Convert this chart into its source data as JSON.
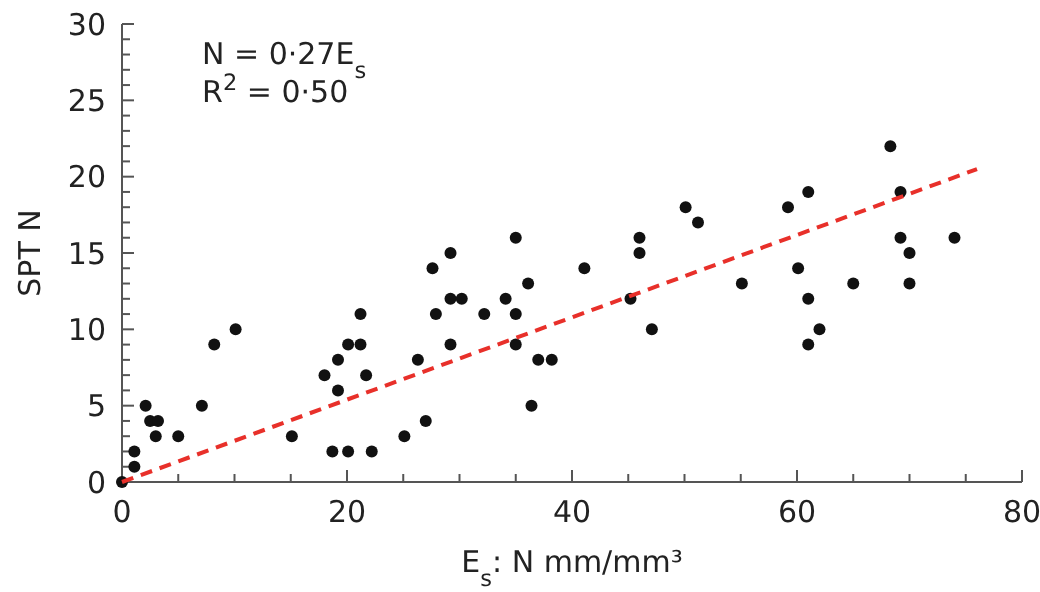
{
  "chart_data": {
    "type": "scatter",
    "xlabel": "E$_{s}$: N mm/mm³",
    "ylabel": "SPT N",
    "annotations": [
      "N = 0·27E$_{s}$",
      "R$^{2}$ = 0·50"
    ],
    "xlim": [
      0,
      80
    ],
    "ylim": [
      0,
      30
    ],
    "xticks": [
      0,
      {
        "value": 5,
        "label": null
      },
      {
        "value": 10,
        "label": null
      },
      {
        "value": 15,
        "label": null
      },
      20,
      {
        "value": 25,
        "label": null
      },
      {
        "value": 30,
        "label": null
      },
      {
        "value": 35,
        "label": null
      },
      40,
      {
        "value": 45,
        "label": null
      },
      {
        "value": 50,
        "label": null
      },
      {
        "value": 55,
        "label": null
      },
      60,
      {
        "value": 65,
        "label": null
      },
      {
        "value": 70,
        "label": null
      },
      {
        "value": 75,
        "label": null
      },
      80
    ],
    "yticks": [
      0,
      {
        "value": 1,
        "label": null
      },
      {
        "value": 2,
        "label": null
      },
      {
        "value": 3,
        "label": null
      },
      {
        "value": 4,
        "label": null
      },
      5,
      {
        "value": 6,
        "label": null
      },
      {
        "value": 7,
        "label": null
      },
      {
        "value": 8,
        "label": null
      },
      {
        "value": 9,
        "label": null
      },
      10,
      {
        "value": 11,
        "label": null
      },
      {
        "value": 12,
        "label": null
      },
      {
        "value": 13,
        "label": null
      },
      {
        "value": 14,
        "label": null
      },
      15,
      {
        "value": 16,
        "label": null
      },
      {
        "value": 17,
        "label": null
      },
      {
        "value": 18,
        "label": null
      },
      {
        "value": 19,
        "label": null
      },
      20,
      {
        "value": 21,
        "label": null
      },
      {
        "value": 22,
        "label": null
      },
      {
        "value": 23,
        "label": null
      },
      {
        "value": 24,
        "label": null
      },
      25,
      {
        "value": 26,
        "label": null
      },
      {
        "value": 27,
        "label": null
      },
      {
        "value": 28,
        "label": null
      },
      {
        "value": 29,
        "label": null
      },
      30
    ],
    "grid": false,
    "series": [
      {
        "color": "#111111",
        "marker": "circle",
        "x": [
          0,
          1.1,
          1.1,
          2.1,
          2.5,
          3.2,
          3,
          5,
          7.1,
          8.2,
          10.1,
          15.1,
          18,
          18.7,
          19.2,
          19.2,
          20.1,
          20.1,
          21.2,
          21.2,
          21.7,
          22.2,
          25.1,
          26.3,
          27,
          27.9,
          27.6,
          29.2,
          29.2,
          29.2,
          30.2,
          32.2,
          34.1,
          35,
          35,
          35,
          36.1,
          36.4,
          37,
          38.2,
          41.1,
          45.2,
          46,
          46,
          47.1,
          50.1,
          51.2,
          55.1,
          59.2,
          60.1,
          61,
          61,
          61,
          62,
          65,
          68.3,
          69.2,
          69.2,
          70,
          70,
          74
        ],
        "values": [
          0,
          1,
          2,
          5,
          4,
          4,
          3,
          3,
          5,
          9,
          10,
          3,
          7,
          2,
          8,
          6,
          9,
          2,
          11,
          9,
          7,
          2,
          3,
          8,
          4,
          11,
          14,
          15,
          12,
          9,
          12,
          11,
          12,
          16,
          11,
          9,
          13,
          5,
          8,
          8,
          14,
          12,
          16,
          15,
          10,
          18,
          17,
          13,
          18,
          14,
          19,
          12,
          9,
          10,
          13,
          22,
          19,
          16,
          15,
          13,
          16
        ]
      },
      {
        "type": "line",
        "color": "#e8302a",
        "line_style": "dashed",
        "marker": "none",
        "x": [
          0,
          76
        ],
        "values": [
          0,
          20.5
        ]
      }
    ]
  }
}
